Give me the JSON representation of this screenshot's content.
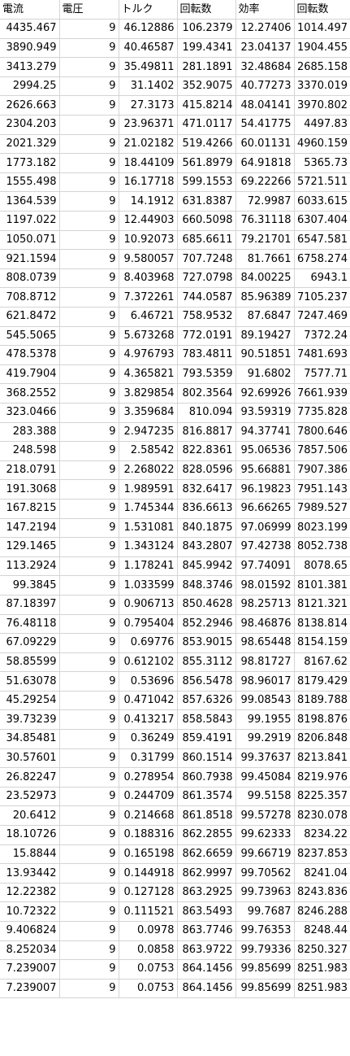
{
  "sheet": {
    "headers": [
      "電流",
      "電圧",
      "トルク",
      "回転数",
      "効率",
      "回転数"
    ],
    "rows": [
      [
        "4435.467",
        "9",
        "46.12886",
        "106.2379",
        "12.27406",
        "1014.497"
      ],
      [
        "3890.949",
        "9",
        "40.46587",
        "199.4341",
        "23.04137",
        "1904.455"
      ],
      [
        "3413.279",
        "9",
        "35.49811",
        "281.1891",
        "32.48684",
        "2685.158"
      ],
      [
        "2994.25",
        "9",
        "31.1402",
        "352.9075",
        "40.77273",
        "3370.019"
      ],
      [
        "2626.663",
        "9",
        "27.3173",
        "415.8214",
        "48.04141",
        "3970.802"
      ],
      [
        "2304.203",
        "9",
        "23.96371",
        "471.0117",
        "54.41775",
        "4497.83"
      ],
      [
        "2021.329",
        "9",
        "21.02182",
        "519.4266",
        "60.01131",
        "4960.159"
      ],
      [
        "1773.182",
        "9",
        "18.44109",
        "561.8979",
        "64.91818",
        "5365.73"
      ],
      [
        "1555.498",
        "9",
        "16.17718",
        "599.1553",
        "69.22266",
        "5721.511"
      ],
      [
        "1364.539",
        "9",
        "14.1912",
        "631.8387",
        "72.9987",
        "6033.615"
      ],
      [
        "1197.022",
        "9",
        "12.44903",
        "660.5098",
        "76.31118",
        "6307.404"
      ],
      [
        "1050.071",
        "9",
        "10.92073",
        "685.6611",
        "79.21701",
        "6547.581"
      ],
      [
        "921.1594",
        "9",
        "9.580057",
        "707.7248",
        "81.7661",
        "6758.274"
      ],
      [
        "808.0739",
        "9",
        "8.403968",
        "727.0798",
        "84.00225",
        "6943.1"
      ],
      [
        "708.8712",
        "9",
        "7.372261",
        "744.0587",
        "85.96389",
        "7105.237"
      ],
      [
        "621.8472",
        "9",
        "6.46721",
        "758.9532",
        "87.6847",
        "7247.469"
      ],
      [
        "545.5065",
        "9",
        "5.673268",
        "772.0191",
        "89.19427",
        "7372.24"
      ],
      [
        "478.5378",
        "9",
        "4.976793",
        "783.4811",
        "90.51851",
        "7481.693"
      ],
      [
        "419.7904",
        "9",
        "4.365821",
        "793.5359",
        "91.6802",
        "7577.71"
      ],
      [
        "368.2552",
        "9",
        "3.829854",
        "802.3564",
        "92.69926",
        "7661.939"
      ],
      [
        "323.0466",
        "9",
        "3.359684",
        "810.094",
        "93.59319",
        "7735.828"
      ],
      [
        "283.388",
        "9",
        "2.947235",
        "816.8817",
        "94.37741",
        "7800.646"
      ],
      [
        "248.598",
        "9",
        "2.58542",
        "822.8361",
        "95.06536",
        "7857.506"
      ],
      [
        "218.0791",
        "9",
        "2.268022",
        "828.0596",
        "95.66881",
        "7907.386"
      ],
      [
        "191.3068",
        "9",
        "1.989591",
        "832.6417",
        "96.19823",
        "7951.143"
      ],
      [
        "167.8215",
        "9",
        "1.745344",
        "836.6613",
        "96.66265",
        "7989.527"
      ],
      [
        "147.2194",
        "9",
        "1.531081",
        "840.1875",
        "97.06999",
        "8023.199"
      ],
      [
        "129.1465",
        "9",
        "1.343124",
        "843.2807",
        "97.42738",
        "8052.738"
      ],
      [
        "113.2924",
        "9",
        "1.178241",
        "845.9942",
        "97.74091",
        "8078.65"
      ],
      [
        "99.3845",
        "9",
        "1.033599",
        "848.3746",
        "98.01592",
        "8101.381"
      ],
      [
        "87.18397",
        "9",
        "0.906713",
        "850.4628",
        "98.25713",
        "8121.321"
      ],
      [
        "76.48118",
        "9",
        "0.795404",
        "852.2946",
        "98.46876",
        "8138.814"
      ],
      [
        "67.09229",
        "9",
        "0.69776",
        "853.9015",
        "98.65448",
        "8154.159"
      ],
      [
        "58.85599",
        "9",
        "0.612102",
        "855.3112",
        "98.81727",
        "8167.62"
      ],
      [
        "51.63078",
        "9",
        "0.53696",
        "856.5478",
        "98.96017",
        "8179.429"
      ],
      [
        "45.29254",
        "9",
        "0.471042",
        "857.6326",
        "99.08543",
        "8189.788"
      ],
      [
        "39.73239",
        "9",
        "0.413217",
        "858.5843",
        "99.1955",
        "8198.876"
      ],
      [
        "34.85481",
        "9",
        "0.36249",
        "859.4191",
        "99.2919",
        "8206.848"
      ],
      [
        "30.57601",
        "9",
        "0.31799",
        "860.1514",
        "99.37637",
        "8213.841"
      ],
      [
        "26.82247",
        "9",
        "0.278954",
        "860.7938",
        "99.45084",
        "8219.976"
      ],
      [
        "23.52973",
        "9",
        "0.244709",
        "861.3574",
        "99.5158",
        "8225.357"
      ],
      [
        "20.6412",
        "9",
        "0.214668",
        "861.8518",
        "99.57278",
        "8230.078"
      ],
      [
        "18.10726",
        "9",
        "0.188316",
        "862.2855",
        "99.62333",
        "8234.22"
      ],
      [
        "15.8844",
        "9",
        "0.165198",
        "862.6659",
        "99.66719",
        "8237.853"
      ],
      [
        "13.93442",
        "9",
        "0.144918",
        "862.9997",
        "99.70562",
        "8241.04"
      ],
      [
        "12.22382",
        "9",
        "0.127128",
        "863.2925",
        "99.73963",
        "8243.836"
      ],
      [
        "10.72322",
        "9",
        "0.111521",
        "863.5493",
        "99.7687",
        "8246.288"
      ],
      [
        "9.406824",
        "9",
        "0.0978",
        "863.7746",
        "99.76353",
        "8248.44"
      ],
      [
        "8.252034",
        "9",
        "0.0858",
        "863.9722",
        "99.79336",
        "8250.327"
      ],
      [
        "7.239007",
        "9",
        "0.0753",
        "864.1456",
        "99.85699",
        "8251.983"
      ],
      [
        "7.239007",
        "9",
        "0.0753",
        "864.1456",
        "99.85699",
        "8251.983"
      ]
    ]
  }
}
